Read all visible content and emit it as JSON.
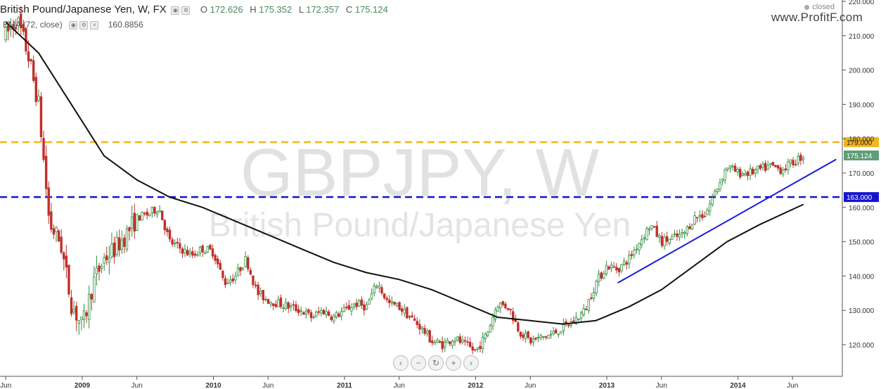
{
  "header": {
    "title": "British Pound/Japanese Yen, W, FX",
    "ohlc": [
      {
        "k": "O",
        "v": "172.626"
      },
      {
        "k": "H",
        "v": "175.352"
      },
      {
        "k": "L",
        "v": "172.357"
      },
      {
        "k": "C",
        "v": "175.124"
      }
    ],
    "indicator_label": "EMA (72, close)",
    "indicator_value": "160.8856"
  },
  "status": "closed",
  "brand": "www.ProfitF.com",
  "watermark": {
    "symbol": "GBPJPY, W",
    "name": "British Pound/Japanese Yen"
  },
  "zoom_controls": [
    "‹",
    "−",
    "↻",
    "+",
    "›"
  ],
  "chart_data": {
    "type": "candlestick",
    "symbol": "GBPJPY",
    "interval": "W",
    "ylim": [
      110,
      222
    ],
    "y_ticks": [
      120,
      130,
      140,
      150,
      160,
      170,
      180,
      190,
      200,
      210,
      220
    ],
    "x_ticks": [
      "Jun",
      "2009",
      "Jun",
      "2010",
      "Jun",
      "2011",
      "Jun",
      "2012",
      "Jun",
      "2013",
      "Jun",
      "2014",
      "Jun"
    ],
    "x_tick_dates": [
      "2008-06",
      "2009-01",
      "2009-06",
      "2010-01",
      "2010-06",
      "2011-01",
      "2011-06",
      "2012-01",
      "2012-06",
      "2013-01",
      "2013-06",
      "2014-01",
      "2014-06"
    ],
    "price_path": [
      [
        "2008-06",
        210
      ],
      [
        "2008-07",
        215
      ],
      [
        "2008-08",
        205
      ],
      [
        "2008-09",
        190
      ],
      [
        "2008-10",
        155
      ],
      [
        "2008-11",
        150
      ],
      [
        "2008-12",
        132
      ],
      [
        "2009-01",
        125
      ],
      [
        "2009-02",
        138
      ],
      [
        "2009-03",
        145
      ],
      [
        "2009-04",
        148
      ],
      [
        "2009-05",
        152
      ],
      [
        "2009-06",
        157
      ],
      [
        "2009-07",
        158
      ],
      [
        "2009-08",
        160
      ],
      [
        "2009-09",
        150
      ],
      [
        "2009-10",
        148
      ],
      [
        "2009-11",
        146
      ],
      [
        "2009-12",
        148
      ],
      [
        "2010-01",
        147
      ],
      [
        "2010-02",
        138
      ],
      [
        "2010-03",
        140
      ],
      [
        "2010-04",
        145
      ],
      [
        "2010-05",
        135
      ],
      [
        "2010-06",
        133
      ],
      [
        "2010-07",
        132
      ],
      [
        "2010-08",
        131
      ],
      [
        "2010-09",
        130
      ],
      [
        "2010-10",
        128
      ],
      [
        "2010-11",
        130
      ],
      [
        "2010-12",
        128
      ],
      [
        "2011-01",
        130
      ],
      [
        "2011-02",
        132
      ],
      [
        "2011-03",
        131
      ],
      [
        "2011-04",
        138
      ],
      [
        "2011-05",
        132
      ],
      [
        "2011-06",
        131
      ],
      [
        "2011-07",
        128
      ],
      [
        "2011-08",
        125
      ],
      [
        "2011-09",
        121
      ],
      [
        "2011-10",
        120
      ],
      [
        "2011-11",
        122
      ],
      [
        "2011-12",
        120
      ],
      [
        "2012-01",
        118
      ],
      [
        "2012-02",
        123
      ],
      [
        "2012-03",
        132
      ],
      [
        "2012-04",
        131
      ],
      [
        "2012-05",
        124
      ],
      [
        "2012-06",
        121
      ],
      [
        "2012-07",
        122
      ],
      [
        "2012-08",
        123
      ],
      [
        "2012-09",
        125
      ],
      [
        "2012-10",
        127
      ],
      [
        "2012-11",
        130
      ],
      [
        "2012-12",
        138
      ],
      [
        "2013-01",
        143
      ],
      [
        "2013-02",
        142
      ],
      [
        "2013-03",
        145
      ],
      [
        "2013-04",
        150
      ],
      [
        "2013-05",
        155
      ],
      [
        "2013-06",
        150
      ],
      [
        "2013-07",
        151
      ],
      [
        "2013-08",
        152
      ],
      [
        "2013-09",
        157
      ],
      [
        "2013-10",
        158
      ],
      [
        "2013-11",
        165
      ],
      [
        "2013-12",
        172
      ],
      [
        "2014-01",
        170
      ],
      [
        "2014-02",
        170
      ],
      [
        "2014-03",
        171
      ],
      [
        "2014-04",
        172
      ],
      [
        "2014-05",
        171
      ],
      [
        "2014-06",
        173
      ],
      [
        "2014-07",
        175.124
      ]
    ],
    "ema": {
      "name": "EMA (72, close)",
      "points": [
        [
          "2008-06",
          214
        ],
        [
          "2008-09",
          205
        ],
        [
          "2008-12",
          190
        ],
        [
          "2009-03",
          175
        ],
        [
          "2009-06",
          168
        ],
        [
          "2009-09",
          163
        ],
        [
          "2009-12",
          160
        ],
        [
          "2010-03",
          156
        ],
        [
          "2010-06",
          152
        ],
        [
          "2010-09",
          148
        ],
        [
          "2010-12",
          144
        ],
        [
          "2011-03",
          141
        ],
        [
          "2011-06",
          139
        ],
        [
          "2011-09",
          136
        ],
        [
          "2011-12",
          132
        ],
        [
          "2012-03",
          128
        ],
        [
          "2012-06",
          127
        ],
        [
          "2012-09",
          126
        ],
        [
          "2012-12",
          127
        ],
        [
          "2013-03",
          131
        ],
        [
          "2013-06",
          136
        ],
        [
          "2013-09",
          143
        ],
        [
          "2013-12",
          150
        ],
        [
          "2014-03",
          155
        ],
        [
          "2014-07",
          160.8856
        ]
      ]
    },
    "trendline": {
      "from": [
        "2013-02",
        138
      ],
      "to": [
        "2014-10",
        174
      ]
    },
    "h_levels": [
      {
        "value": 179.0,
        "label": "179.000",
        "color": "#f2b51c"
      },
      {
        "value": 163.0,
        "label": "163.000",
        "color": "#1515cc"
      }
    ],
    "last_price": {
      "value": 175.124,
      "label": "175.124",
      "color": "#5e9e78"
    },
    "colors": {
      "up": "#2e8b3a",
      "down": "#c0302a",
      "ema": "#111111",
      "trend": "#1a1ae0"
    }
  }
}
